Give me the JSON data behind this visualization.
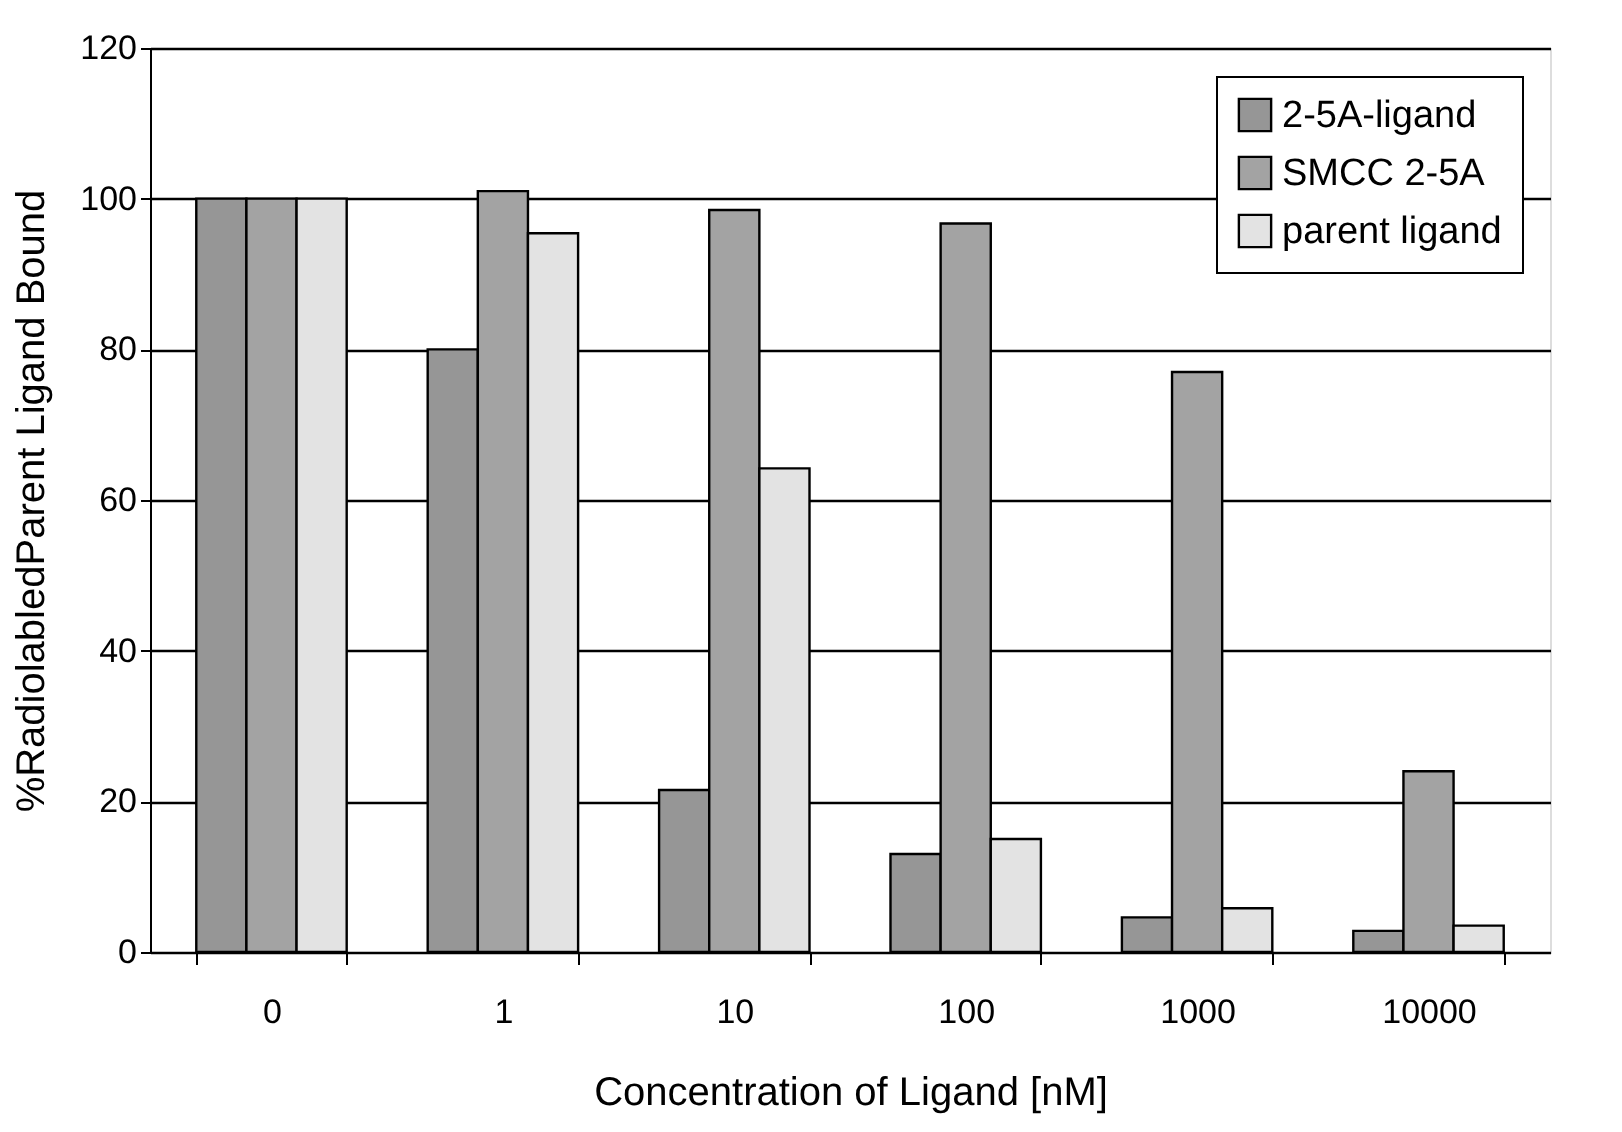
{
  "chart_data": {
    "type": "bar",
    "xlabel": "Concentration of Ligand [nM]",
    "ylabel": "%RadiolabledParent Ligand Bound",
    "categories": [
      "0",
      "1",
      "10",
      "100",
      "1000",
      "10000"
    ],
    "series": [
      {
        "name": "2-5A-ligand",
        "color": "#969696",
        "values": [
          100,
          80,
          21.5,
          13,
          4.6,
          2.8
        ]
      },
      {
        "name": "SMCC 2-5A",
        "color": "#a3a3a3",
        "values": [
          100,
          101,
          98.5,
          96.7,
          77,
          24
        ]
      },
      {
        "name": "parent ligand",
        "color": "#e3e3e3",
        "values": [
          100,
          95.4,
          64.2,
          15,
          5.8,
          3.5
        ]
      }
    ],
    "ylim": [
      0,
      120
    ],
    "yticks": [
      0,
      20,
      40,
      60,
      80,
      100,
      120
    ],
    "grid": "y",
    "legend": "top right"
  }
}
